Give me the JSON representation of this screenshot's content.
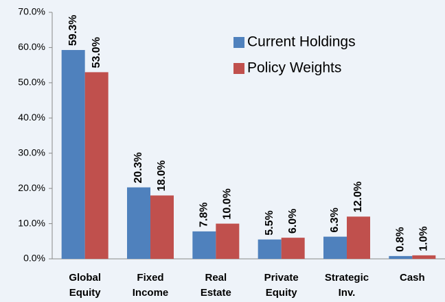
{
  "chart_data": {
    "type": "bar",
    "categories": [
      [
        "Global",
        "Equity"
      ],
      [
        "Fixed",
        "Income"
      ],
      [
        "Real",
        "Estate"
      ],
      [
        "Private",
        "Equity"
      ],
      [
        "Strategic",
        "Inv."
      ],
      [
        "Cash"
      ]
    ],
    "series": [
      {
        "name": "Current Holdings",
        "color": "#4f81bd",
        "values": [
          59.3,
          20.3,
          7.8,
          5.5,
          6.3,
          0.8
        ],
        "value_labels": [
          "59.3%",
          "20.3%",
          "7.8%",
          "5.5%",
          "6.3%",
          "0.8%"
        ]
      },
      {
        "name": "Policy Weights",
        "color": "#c0504d",
        "values": [
          53.0,
          18.0,
          10.0,
          6.0,
          12.0,
          1.0
        ],
        "value_labels": [
          "53.0%",
          "18.0%",
          "10.0%",
          "6.0%",
          "12.0%",
          "1.0%"
        ]
      }
    ],
    "ylim": [
      0,
      70
    ],
    "yticks": [
      {
        "value": 0,
        "label": "0.0%"
      },
      {
        "value": 10,
        "label": "10.0%"
      },
      {
        "value": 20,
        "label": "20.0%"
      },
      {
        "value": 30,
        "label": "30.0%"
      },
      {
        "value": 40,
        "label": "40.0%"
      },
      {
        "value": 50,
        "label": "50.0%"
      },
      {
        "value": 60,
        "label": "60.0%"
      },
      {
        "value": 70,
        "label": "70.0%"
      }
    ],
    "grid": false,
    "legend": "top-right"
  }
}
